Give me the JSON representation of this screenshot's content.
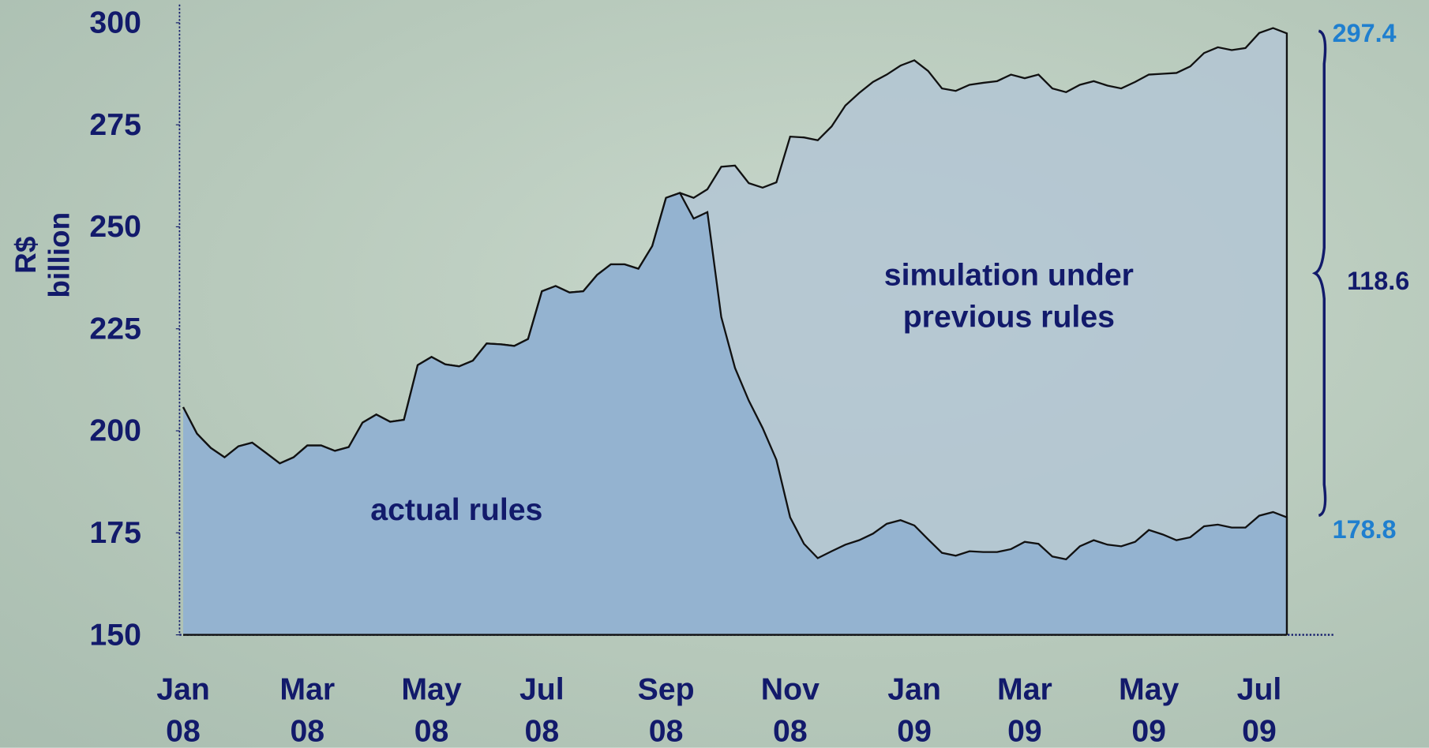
{
  "chart_data": {
    "type": "area",
    "y_label": "R$ billion",
    "categories": [
      "Jan 08",
      null,
      null,
      null,
      null,
      null,
      null,
      null,
      null,
      "Mar 08",
      null,
      null,
      null,
      null,
      null,
      null,
      null,
      null,
      "May 08",
      null,
      null,
      null,
      null,
      null,
      null,
      null,
      "Jul 08",
      null,
      null,
      null,
      null,
      null,
      null,
      null,
      null,
      "Sep 08",
      null,
      null,
      null,
      null,
      null,
      null,
      null,
      null,
      "Nov 08",
      null,
      null,
      null,
      null,
      null,
      null,
      null,
      null,
      "Jan 09",
      null,
      null,
      null,
      null,
      null,
      null,
      null,
      "Mar 09",
      null,
      null,
      null,
      null,
      null,
      null,
      null,
      null,
      "May 09",
      null,
      null,
      null,
      null,
      null,
      null,
      null,
      "Jul 09",
      null,
      null
    ],
    "series": [
      {
        "name": "simulation under previous rules",
        "color": "#b3c5d3",
        "values": [
          205.8,
          199.3,
          195.8,
          193.5,
          196.2,
          197.1,
          194.6,
          192.0,
          193.5,
          196.4,
          196.4,
          195.1,
          196.0,
          202.0,
          204.0,
          202.2,
          202.7,
          216.1,
          218.1,
          216.3,
          215.8,
          217.2,
          221.4,
          221.2,
          220.8,
          222.5,
          234.2,
          235.5,
          233.9,
          234.2,
          238.2,
          240.8,
          240.8,
          239.7,
          245.3,
          257.1,
          258.3,
          257.1,
          259.2,
          264.7,
          265.0,
          260.7,
          259.6,
          260.9,
          272.1,
          271.9,
          271.2,
          274.6,
          279.7,
          282.8,
          285.5,
          287.3,
          289.5,
          290.8,
          288.2,
          283.9,
          283.3,
          284.8,
          285.3,
          285.7,
          287.3,
          286.4,
          287.3,
          283.9,
          283.0,
          284.8,
          285.7,
          284.6,
          283.9,
          285.5,
          287.3,
          287.5,
          287.7,
          289.3,
          292.6,
          294.0,
          293.3,
          293.8,
          297.5,
          298.7,
          297.4
        ]
      },
      {
        "name": "actual rules",
        "color": "#8eafd0",
        "values": [
          205.8,
          199.3,
          195.8,
          193.5,
          196.2,
          197.1,
          194.6,
          192.0,
          193.5,
          196.4,
          196.4,
          195.1,
          196.0,
          202.0,
          204.0,
          202.2,
          202.7,
          216.1,
          218.1,
          216.3,
          215.8,
          217.2,
          221.4,
          221.2,
          220.8,
          222.5,
          234.2,
          235.5,
          233.9,
          234.2,
          238.2,
          240.8,
          240.8,
          239.7,
          245.3,
          257.1,
          258.3,
          252.0,
          253.6,
          227.9,
          215.4,
          207.4,
          200.7,
          192.9,
          178.8,
          172.3,
          168.8,
          170.5,
          172.1,
          173.2,
          174.8,
          177.2,
          178.1,
          176.8,
          173.4,
          170.1,
          169.4,
          170.5,
          170.3,
          170.3,
          171.0,
          172.8,
          172.3,
          169.2,
          168.5,
          171.7,
          173.2,
          172.1,
          171.7,
          172.8,
          175.7,
          174.6,
          173.2,
          173.9,
          176.6,
          177.0,
          176.3,
          176.3,
          179.2,
          180.1,
          178.8
        ]
      }
    ],
    "ylim": [
      150,
      300
    ],
    "yticks": [
      150,
      175,
      200,
      225,
      250,
      275,
      300
    ],
    "end_values": [
      297.4,
      178.8
    ],
    "difference": 118.6
  }
}
